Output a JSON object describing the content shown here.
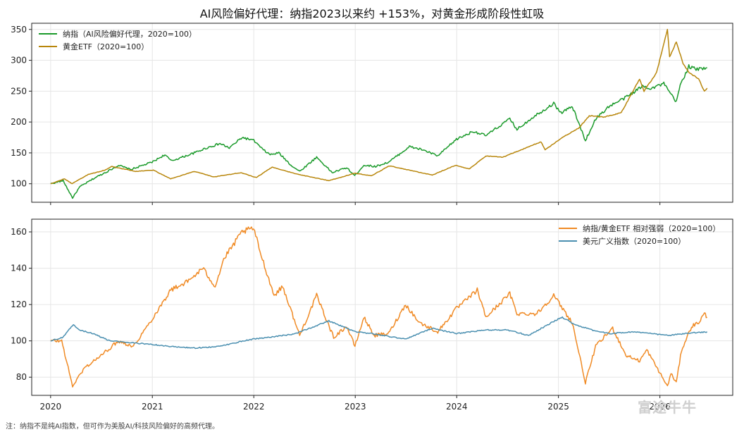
{
  "chart_data": [
    {
      "type": "line",
      "title": "AI风险偏好代理：纳指2023以来约 +153%，对黄金形成阶段性虹吸",
      "ylim": [
        70,
        360
      ],
      "yticks": [
        100,
        150,
        200,
        250,
        300,
        350
      ],
      "legend_position": "top-left",
      "grid": true,
      "series": [
        {
          "name": "纳指（AI风险偏好代理，2020=100）",
          "color": "#1a9a2a",
          "points": [
            [
              "2020-01-01",
              100
            ],
            [
              "2020-02-15",
              105
            ],
            [
              "2020-03-20",
              77
            ],
            [
              "2020-04-15",
              95
            ],
            [
              "2020-06-10",
              110
            ],
            [
              "2020-08-01",
              122
            ],
            [
              "2020-09-01",
              130
            ],
            [
              "2020-10-15",
              123
            ],
            [
              "2020-12-31",
              135
            ],
            [
              "2021-02-15",
              147
            ],
            [
              "2021-03-10",
              137
            ],
            [
              "2021-05-01",
              145
            ],
            [
              "2021-06-01",
              150
            ],
            [
              "2021-07-15",
              158
            ],
            [
              "2021-09-01",
              165
            ],
            [
              "2021-10-05",
              158
            ],
            [
              "2021-11-20",
              175
            ],
            [
              "2022-01-01",
              170
            ],
            [
              "2022-02-01",
              156
            ],
            [
              "2022-03-01",
              147
            ],
            [
              "2022-04-01",
              150
            ],
            [
              "2022-05-15",
              130
            ],
            [
              "2022-06-15",
              120
            ],
            [
              "2022-08-15",
              143
            ],
            [
              "2022-10-10",
              118
            ],
            [
              "2022-12-01",
              126
            ],
            [
              "2022-12-30",
              113
            ],
            [
              "2023-02-01",
              130
            ],
            [
              "2023-03-15",
              128
            ],
            [
              "2023-05-01",
              135
            ],
            [
              "2023-07-15",
              160
            ],
            [
              "2023-09-01",
              155
            ],
            [
              "2023-10-25",
              145
            ],
            [
              "2023-12-31",
              172
            ],
            [
              "2024-03-01",
              185
            ],
            [
              "2024-04-15",
              178
            ],
            [
              "2024-07-10",
              205
            ],
            [
              "2024-08-05",
              188
            ],
            [
              "2024-10-01",
              208
            ],
            [
              "2024-12-15",
              230
            ],
            [
              "2025-01-10",
              215
            ],
            [
              "2025-02-20",
              225
            ],
            [
              "2025-04-08",
              170
            ],
            [
              "2025-05-15",
              205
            ],
            [
              "2025-07-01",
              225
            ],
            [
              "2025-09-01",
              240
            ],
            [
              "2025-10-30",
              258
            ],
            [
              "2025-12-01",
              255
            ],
            [
              "2026-01-15",
              262
            ],
            [
              "2026-03-01",
              232
            ],
            [
              "2026-03-15",
              260
            ],
            [
              "2026-04-15",
              290
            ],
            [
              "2026-05-15",
              285
            ],
            [
              "2026-06-20",
              288
            ]
          ]
        },
        {
          "name": "黄金ETF（2020=100）",
          "color": "#b8860b",
          "points": [
            [
              "2020-01-01",
              100
            ],
            [
              "2020-02-20",
              108
            ],
            [
              "2020-03-18",
              100
            ],
            [
              "2020-05-15",
              115
            ],
            [
              "2020-07-15",
              122
            ],
            [
              "2020-08-07",
              128
            ],
            [
              "2020-11-01",
              120
            ],
            [
              "2021-01-05",
              122
            ],
            [
              "2021-03-08",
              108
            ],
            [
              "2021-06-01",
              120
            ],
            [
              "2021-08-10",
              111
            ],
            [
              "2021-11-15",
              118
            ],
            [
              "2022-01-10",
              110
            ],
            [
              "2022-03-08",
              127
            ],
            [
              "2022-06-01",
              116
            ],
            [
              "2022-09-28",
              105
            ],
            [
              "2022-12-31",
              117
            ],
            [
              "2023-02-28",
              113
            ],
            [
              "2023-05-04",
              129
            ],
            [
              "2023-10-05",
              114
            ],
            [
              "2023-12-28",
              130
            ],
            [
              "2024-02-15",
              124
            ],
            [
              "2024-04-15",
              145
            ],
            [
              "2024-06-15",
              143
            ],
            [
              "2024-10-30",
              168
            ],
            [
              "2024-11-14",
              155
            ],
            [
              "2025-01-15",
              175
            ],
            [
              "2025-03-15",
              190
            ],
            [
              "2025-04-22",
              210
            ],
            [
              "2025-06-15",
              208
            ],
            [
              "2025-08-15",
              215
            ],
            [
              "2025-10-20",
              270
            ],
            [
              "2025-11-05",
              250
            ],
            [
              "2025-12-20",
              280
            ],
            [
              "2026-01-28",
              350
            ],
            [
              "2026-02-05",
              305
            ],
            [
              "2026-03-01",
              330
            ],
            [
              "2026-03-25",
              295
            ],
            [
              "2026-04-15",
              280
            ],
            [
              "2026-05-20",
              270
            ],
            [
              "2026-06-10",
              250
            ],
            [
              "2026-06-20",
              255
            ]
          ]
        }
      ]
    },
    {
      "type": "line",
      "ylim": [
        70,
        167
      ],
      "yticks": [
        80,
        100,
        120,
        140,
        160
      ],
      "xticks": [
        "2020",
        "2021",
        "2022",
        "2023",
        "2024",
        "2025",
        "2026"
      ],
      "legend_position": "top-right",
      "grid": true,
      "series": [
        {
          "name": "纳指/黄金ETF 相对强弱（2020=100）",
          "color": "#f08a24",
          "points": [
            [
              "2020-01-01",
              100
            ],
            [
              "2020-02-10",
              100
            ],
            [
              "2020-03-20",
              75
            ],
            [
              "2020-05-01",
              85
            ],
            [
              "2020-07-01",
              92
            ],
            [
              "2020-09-01",
              100
            ],
            [
              "2020-10-25",
              97
            ],
            [
              "2020-12-31",
              112
            ],
            [
              "2021-03-08",
              128
            ],
            [
              "2021-05-12",
              133
            ],
            [
              "2021-07-01",
              140
            ],
            [
              "2021-08-15",
              130
            ],
            [
              "2021-09-15",
              145
            ],
            [
              "2021-11-20",
              160
            ],
            [
              "2021-12-31",
              162
            ],
            [
              "2022-02-01",
              145
            ],
            [
              "2022-03-15",
              125
            ],
            [
              "2022-04-15",
              130
            ],
            [
              "2022-06-15",
              103
            ],
            [
              "2022-08-15",
              125
            ],
            [
              "2022-10-15",
              102
            ],
            [
              "2022-12-01",
              108
            ],
            [
              "2022-12-31",
              97
            ],
            [
              "2023-02-01",
              113
            ],
            [
              "2023-03-10",
              103
            ],
            [
              "2023-05-01",
              104
            ],
            [
              "2023-07-01",
              120
            ],
            [
              "2023-08-20",
              110
            ],
            [
              "2023-10-25",
              105
            ],
            [
              "2024-01-01",
              118
            ],
            [
              "2024-02-01",
              122
            ],
            [
              "2024-03-15",
              128
            ],
            [
              "2024-04-15",
              113
            ],
            [
              "2024-07-10",
              126
            ],
            [
              "2024-08-05",
              115
            ],
            [
              "2024-10-15",
              115
            ],
            [
              "2024-12-15",
              125
            ],
            [
              "2025-01-15",
              118
            ],
            [
              "2025-02-20",
              110
            ],
            [
              "2025-04-08",
              77
            ],
            [
              "2025-05-15",
              97
            ],
            [
              "2025-07-15",
              107
            ],
            [
              "2025-09-01",
              92
            ],
            [
              "2025-10-20",
              89
            ],
            [
              "2025-11-15",
              95
            ],
            [
              "2026-01-28",
              75
            ],
            [
              "2026-02-10",
              82
            ],
            [
              "2026-03-01",
              77
            ],
            [
              "2026-03-20",
              95
            ],
            [
              "2026-04-25",
              108
            ],
            [
              "2026-05-20",
              110
            ],
            [
              "2026-06-10",
              115
            ],
            [
              "2026-06-20",
              113
            ]
          ]
        },
        {
          "name": "美元广义指数（2020=100）",
          "color": "#4a8fb0",
          "points": [
            [
              "2020-01-01",
              100
            ],
            [
              "2020-02-15",
              102
            ],
            [
              "2020-03-23",
              109
            ],
            [
              "2020-04-15",
              106
            ],
            [
              "2020-06-01",
              104
            ],
            [
              "2020-08-01",
              100
            ],
            [
              "2020-12-31",
              98
            ],
            [
              "2021-03-01",
              97
            ],
            [
              "2021-06-01",
              96
            ],
            [
              "2021-09-01",
              97
            ],
            [
              "2021-11-25",
              100
            ],
            [
              "2021-12-31",
              101
            ],
            [
              "2022-03-01",
              102
            ],
            [
              "2022-06-01",
              104
            ],
            [
              "2022-09-28",
              111
            ],
            [
              "2022-12-31",
              105
            ],
            [
              "2023-03-01",
              104
            ],
            [
              "2023-07-01",
              101
            ],
            [
              "2023-10-05",
              107
            ],
            [
              "2023-12-31",
              104
            ],
            [
              "2024-04-15",
              106
            ],
            [
              "2024-07-01",
              106
            ],
            [
              "2024-09-15",
              103
            ],
            [
              "2024-12-31",
              112
            ],
            [
              "2025-01-15",
              113
            ],
            [
              "2025-03-01",
              109
            ],
            [
              "2025-05-01",
              106
            ],
            [
              "2025-07-01",
              104
            ],
            [
              "2025-10-01",
              105
            ],
            [
              "2025-12-01",
              104
            ],
            [
              "2026-02-01",
              103
            ],
            [
              "2026-04-01",
              104
            ],
            [
              "2026-06-20",
              105
            ]
          ]
        }
      ]
    }
  ],
  "footnote": "注：纳指不是纯AI指数，但可作为美股AI/科技风险偏好的高频代理。",
  "watermark": "富途牛牛"
}
